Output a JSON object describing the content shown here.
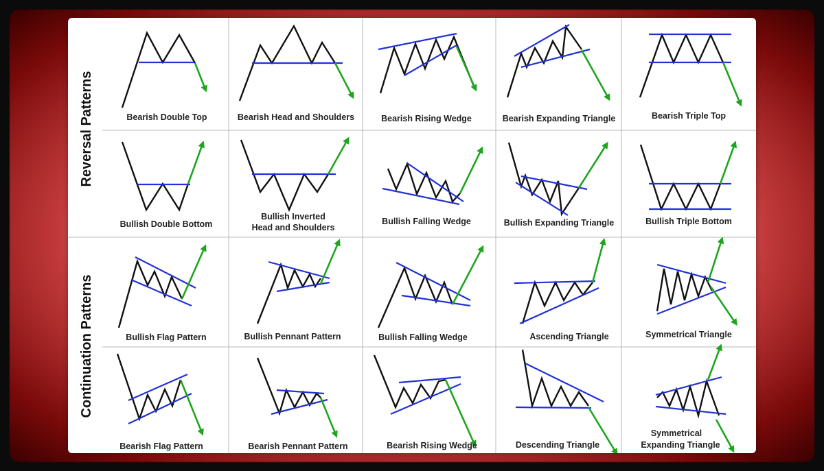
{
  "sections": {
    "reversal": "Reversal Patterns",
    "continuation": "Continuation Patterns"
  },
  "rows": [
    [
      "Bearish Double Top",
      "Bearish Head and Shoulders",
      "Bearish Rising Wedge",
      "Bearish Expanding Triangle",
      "Bearish Triple Top"
    ],
    [
      [
        "Bullish Double Bottom"
      ],
      [
        "Bullish Inverted",
        "Head and Shoulders"
      ],
      [
        "Bullish Falling Wedge"
      ],
      [
        "Bullish Expanding Triangle"
      ],
      [
        "Bullish Triple Bottom"
      ]
    ],
    [
      "Bullish Flag Pattern",
      "Bullish Pennant Pattern",
      "Bullish Falling Wedge",
      "Ascending Triangle",
      "Symmetrical Triangle"
    ],
    [
      [
        "Bearish Flag Pattern"
      ],
      [
        "Bearish Pennant Pattern"
      ],
      [
        "Bearish Rising Wedge"
      ],
      [
        "Descending Triangle"
      ],
      [
        "Symmetrical",
        "Expanding Triangle"
      ]
    ]
  ],
  "colors": {
    "price_line": "#111111",
    "trend_line": "#2231d6",
    "breakout_arrow": "#1ea51e",
    "grid": "#b8b8b8"
  }
}
